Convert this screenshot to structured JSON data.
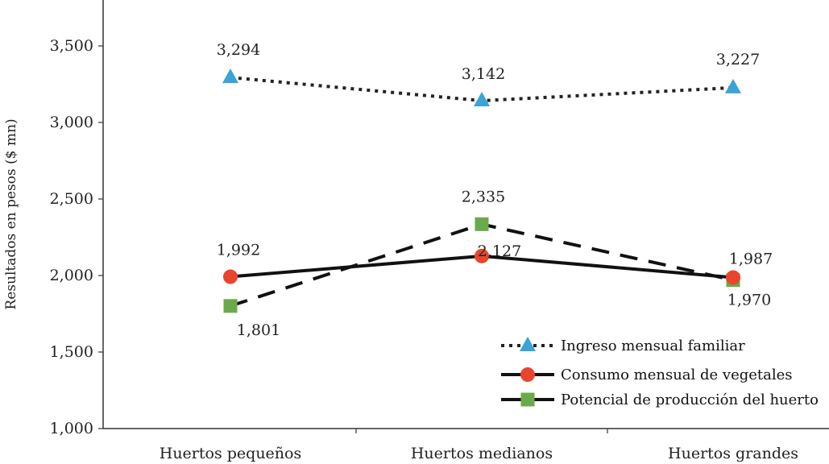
{
  "chart_data": {
    "type": "line",
    "categories": [
      "Huertos pequeños",
      "Huertos medianos",
      "Huertos grandes"
    ],
    "ylabel": "Resultados en pesos ($ mn)",
    "ylim": [
      1000,
      3900
    ],
    "yticks": [
      1000,
      1500,
      2000,
      2500,
      3000,
      3500
    ],
    "ytick_labels": [
      "1,000",
      "1,500",
      "2,000",
      "2,500",
      "3,000",
      "3,500"
    ],
    "grid": false,
    "legend_position": "bottom-right",
    "series": [
      {
        "name": "Ingreso mensual familiar",
        "values": [
          3294,
          3142,
          3227
        ],
        "labels": [
          "3,294",
          "3,142",
          "3,227"
        ],
        "color": "#3aa3d8",
        "line_color": "#222222",
        "line_style": "dotted",
        "marker": "triangle"
      },
      {
        "name": "Consumo mensual de vegetales",
        "values": [
          1992,
          2127,
          1987
        ],
        "labels": [
          "1,992",
          "2,127",
          "1,987"
        ],
        "color": "#e8452c",
        "line_color": "#111111",
        "line_style": "solid",
        "marker": "circle"
      },
      {
        "name": "Potencial de producción del huerto",
        "values": [
          1801,
          2335,
          1970
        ],
        "labels": [
          "1,801",
          "2,335",
          "1,970"
        ],
        "color": "#6aaa4a",
        "line_color": "#111111",
        "line_style": "dashed",
        "marker": "square"
      }
    ]
  }
}
